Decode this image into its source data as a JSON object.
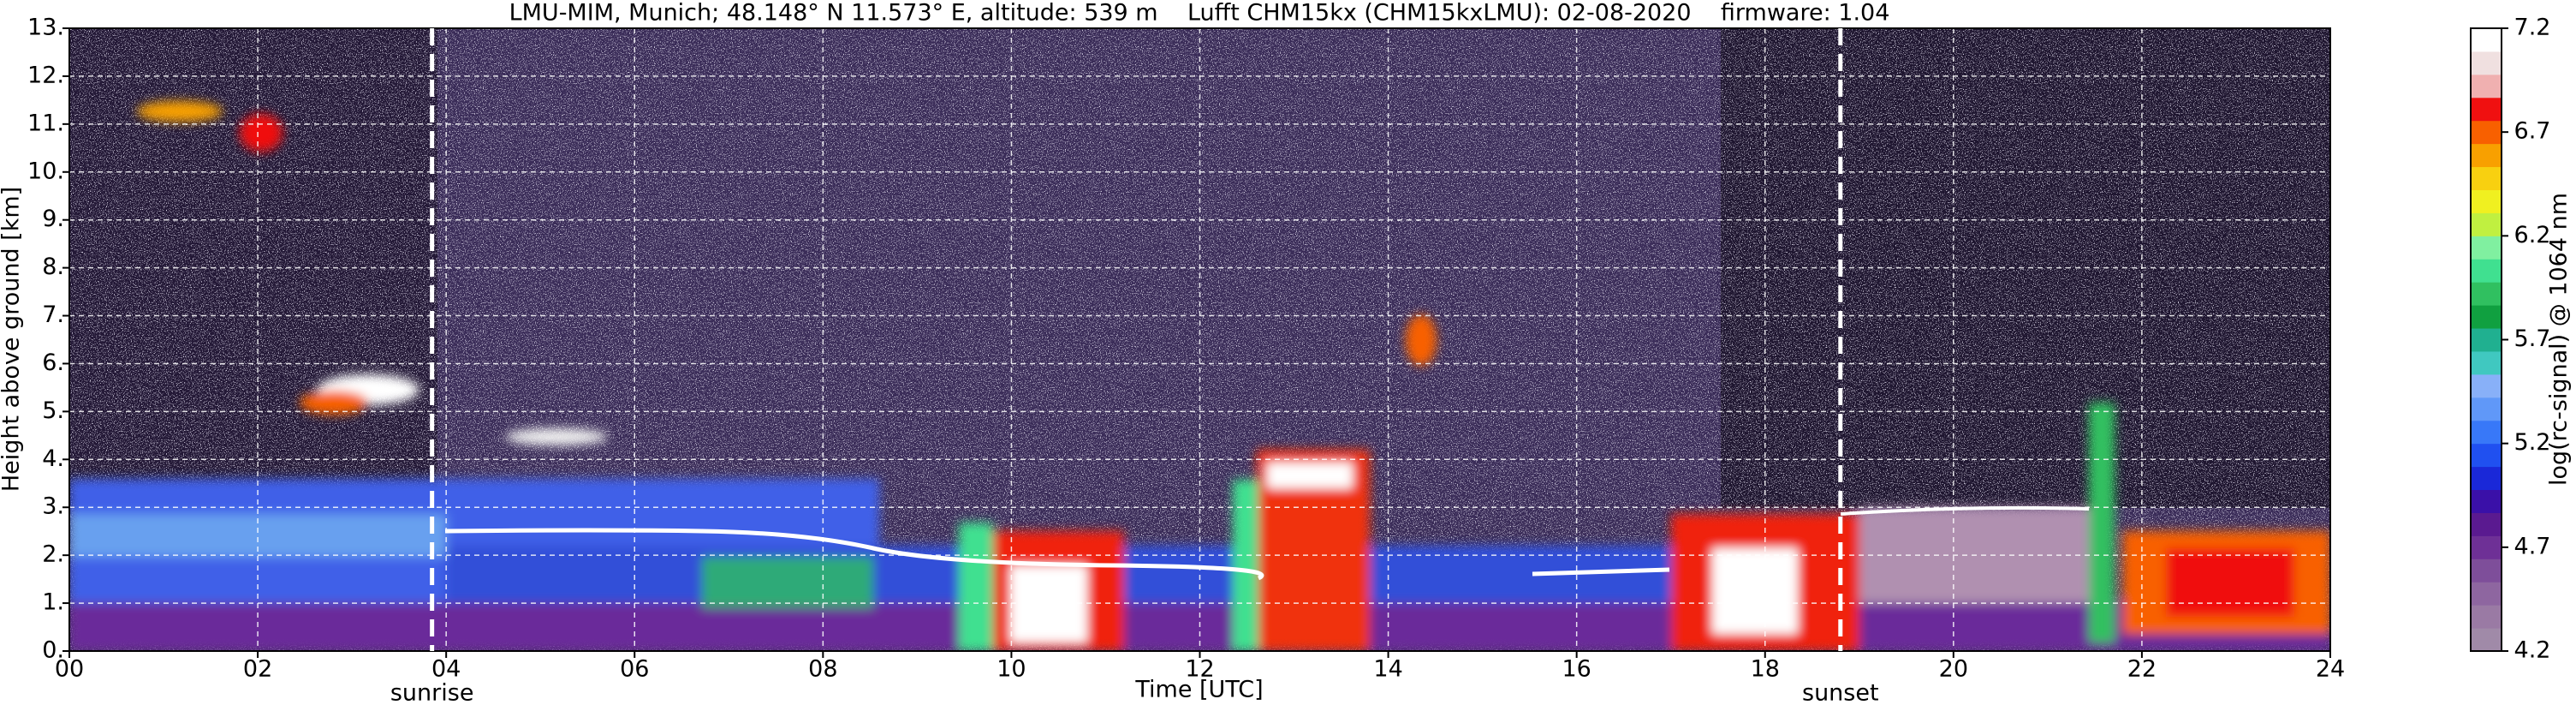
{
  "chart_data": {
    "type": "heatmap",
    "title": "LMU-MIM, Munich; 48.148° N 11.573° E, altitude: 539 m    Lufft CHM15kx (CHM15kxLMU): 02-08-2020    firmware: 1.04",
    "x_label": "Time [UTC]",
    "y_label": "Height above ground [km]",
    "xlim": [
      0,
      24
    ],
    "xticks": [
      {
        "value": 0,
        "label": "00"
      },
      {
        "value": 2,
        "label": "02"
      },
      {
        "value": 4,
        "label": "04"
      },
      {
        "value": 6,
        "label": "06"
      },
      {
        "value": 8,
        "label": "08"
      },
      10,
      12,
      14,
      16,
      18,
      20,
      22,
      24
    ],
    "ylim": [
      0,
      13
    ],
    "yticks": [
      {
        "value": 0,
        "label": "0."
      },
      {
        "value": 1,
        "label": "1."
      },
      {
        "value": 2,
        "label": "2."
      },
      {
        "value": 3,
        "label": "3."
      },
      {
        "value": 4,
        "label": "4."
      },
      {
        "value": 5,
        "label": "5."
      },
      {
        "value": 6,
        "label": "6."
      },
      {
        "value": 7,
        "label": "7."
      },
      {
        "value": 8,
        "label": "8."
      },
      {
        "value": 9,
        "label": "9."
      },
      {
        "value": 10,
        "label": "10."
      },
      {
        "value": 11,
        "label": "11."
      },
      {
        "value": 12,
        "label": "12."
      },
      {
        "value": 13,
        "label": "13."
      }
    ],
    "grid": true,
    "annotations": [
      {
        "text": "sunrise",
        "x": 3.85
      },
      {
        "text": "sunset",
        "x": 18.8
      }
    ],
    "colorbar": {
      "label": "log(rc-signal) @ 1064 nm",
      "lim": [
        4.2,
        7.2
      ],
      "ticks": [
        4.2,
        4.7,
        5.2,
        5.7,
        6.2,
        6.7,
        7.2
      ],
      "colors": [
        "#a08aa8",
        "#9a7aa4",
        "#8e66a0",
        "#7e4e9a",
        "#6e3096",
        "#5a1a90",
        "#3a10a8",
        "#1a28d8",
        "#2050f0",
        "#3878f8",
        "#6098f8",
        "#88b0f8",
        "#40c8c0",
        "#20b090",
        "#10a040",
        "#30c060",
        "#40e090",
        "#80f0a0",
        "#c0f040",
        "#f0f020",
        "#f8d010",
        "#f8a000",
        "#f86000",
        "#f01010",
        "#f0b0b0",
        "#f0e0e0",
        "#ffffff"
      ]
    }
  }
}
